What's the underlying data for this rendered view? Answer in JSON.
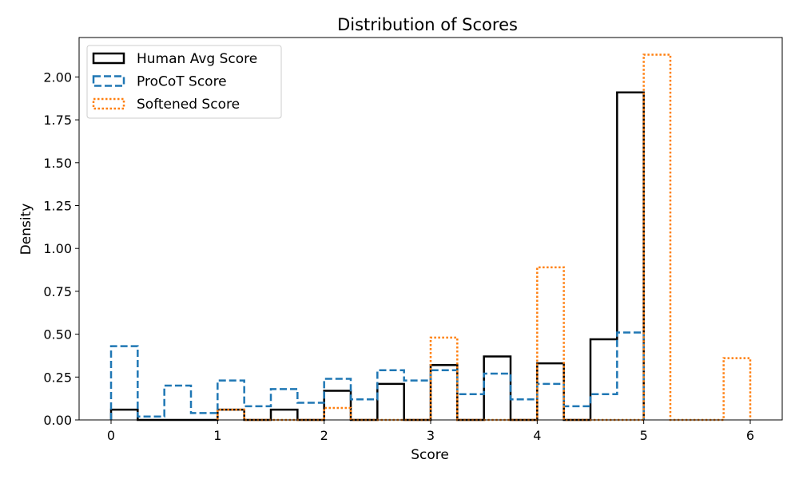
{
  "chart_data": {
    "type": "histogram",
    "title": "Distribution of Scores",
    "xlabel": "Score",
    "ylabel": "Density",
    "xlim": [
      -0.3,
      6.3
    ],
    "ylim": [
      0,
      2.23
    ],
    "xticks": [
      0,
      1,
      2,
      3,
      4,
      5,
      6
    ],
    "yticks": [
      0,
      0.25,
      0.5,
      0.75,
      1.0,
      1.25,
      1.5,
      1.75,
      2.0
    ],
    "ytick_labels": [
      "0.00",
      "0.25",
      "0.50",
      "0.75",
      "1.00",
      "1.25",
      "1.50",
      "1.75",
      "2.00"
    ],
    "grid": false,
    "legend_position": "top-left",
    "series": [
      {
        "name": "Human Avg Score",
        "color": "#000000",
        "line_style": "solid",
        "bin_edges": [
          0,
          0.25,
          0.5,
          0.75,
          1,
          1.25,
          1.5,
          1.75,
          2,
          2.25,
          2.5,
          2.75,
          3,
          3.25,
          3.5,
          3.75,
          4,
          4.25,
          4.5,
          4.75,
          5
        ],
        "densities": [
          0.06,
          0,
          0,
          0,
          0.06,
          0,
          0.06,
          0,
          0.17,
          0,
          0.21,
          0,
          0.32,
          0,
          0.37,
          0,
          0.33,
          0,
          0.47,
          1.91
        ]
      },
      {
        "name": "ProCoT Score",
        "color": "#1f77b4",
        "line_style": "dashed",
        "bin_edges": [
          0,
          0.25,
          0.5,
          0.75,
          1,
          1.25,
          1.5,
          1.75,
          2,
          2.25,
          2.5,
          2.75,
          3,
          3.25,
          3.5,
          3.75,
          4,
          4.25,
          4.5,
          4.75,
          5
        ],
        "densities": [
          0.43,
          0.02,
          0.2,
          0.04,
          0.23,
          0.08,
          0.18,
          0.1,
          0.24,
          0.12,
          0.29,
          0.23,
          0.29,
          0.15,
          0.27,
          0.12,
          0.21,
          0.08,
          0.15,
          0.51
        ]
      },
      {
        "name": "Softened Score",
        "color": "#ff7f0e",
        "line_style": "dotted",
        "bin_edges": [
          1,
          1.25,
          1.5,
          1.75,
          2,
          2.25,
          2.5,
          2.75,
          3,
          3.25,
          3.5,
          3.75,
          4,
          4.25,
          4.5,
          4.75,
          5,
          5.25,
          5.5,
          5.75,
          6
        ],
        "densities": [
          0.06,
          0,
          0,
          0,
          0.07,
          0,
          0,
          0,
          0.48,
          0,
          0,
          0,
          0.89,
          0,
          0,
          0,
          2.13,
          0,
          0,
          0.36
        ]
      }
    ]
  }
}
